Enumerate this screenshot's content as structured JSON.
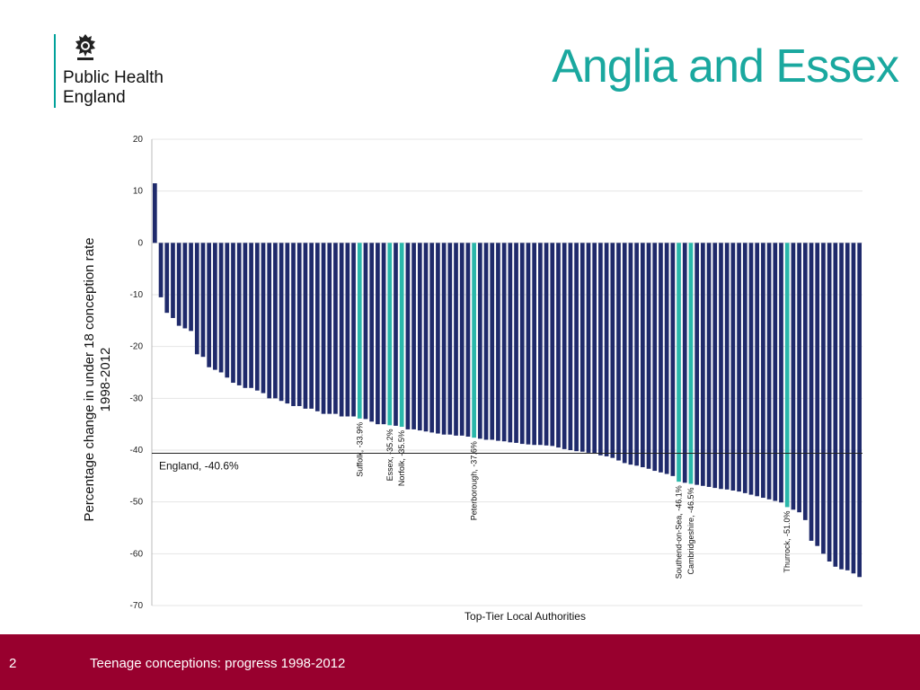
{
  "logo": {
    "line1": "Public Health",
    "line2": "England"
  },
  "slide": {
    "title": "Anglia and Essex"
  },
  "footer": {
    "page_number": "2",
    "text": "Teenage conceptions: progress 1998-2012"
  },
  "colors": {
    "bar": "#1f2a6b",
    "highlight": "#2ab7aa",
    "title": "#1aa89f",
    "footer": "#98002e"
  },
  "chart_data": {
    "type": "bar",
    "title": "",
    "xlabel": "Top-Tier Local Authorities",
    "ylabel": "Percentage change in under 18 conception rate 1998-2012",
    "ylim": [
      -70,
      20
    ],
    "yticks": [
      20,
      10,
      0,
      -10,
      -20,
      -30,
      -40,
      -50,
      -60,
      -70
    ],
    "grid": true,
    "reference_line": {
      "value": -40.6,
      "label": "England, -40.6%"
    },
    "values": [
      11.5,
      -10.5,
      -13.5,
      -14.5,
      -16.0,
      -16.5,
      -17.0,
      -21.5,
      -22.0,
      -24.0,
      -24.5,
      -25.0,
      -26.0,
      -27.0,
      -27.5,
      -28.0,
      -28.0,
      -28.5,
      -29.0,
      -30.0,
      -30.0,
      -30.5,
      -31.0,
      -31.5,
      -31.5,
      -32.0,
      -32.0,
      -32.5,
      -33.0,
      -33.0,
      -33.0,
      -33.5,
      -33.5,
      -33.5,
      -33.9,
      -34.0,
      -34.5,
      -35.0,
      -35.0,
      -35.2,
      -35.3,
      -35.5,
      -36.0,
      -36.0,
      -36.2,
      -36.4,
      -36.6,
      -36.8,
      -37.0,
      -37.0,
      -37.2,
      -37.2,
      -37.4,
      -37.6,
      -37.8,
      -38.0,
      -38.0,
      -38.2,
      -38.3,
      -38.5,
      -38.6,
      -38.8,
      -38.9,
      -39.0,
      -39.0,
      -39.1,
      -39.2,
      -39.5,
      -39.8,
      -40.0,
      -40.2,
      -40.3,
      -40.5,
      -40.7,
      -41.0,
      -41.2,
      -41.5,
      -42.0,
      -42.5,
      -42.8,
      -43.0,
      -43.3,
      -43.6,
      -44.0,
      -44.3,
      -44.6,
      -45.0,
      -46.1,
      -46.3,
      -46.5,
      -46.7,
      -46.9,
      -47.1,
      -47.3,
      -47.5,
      -47.6,
      -47.8,
      -48.0,
      -48.3,
      -48.6,
      -48.9,
      -49.2,
      -49.5,
      -49.8,
      -50.1,
      -51.0,
      -51.5,
      -52.0,
      -53.5,
      -57.5,
      -58.5,
      -60.0,
      -61.5,
      -62.5,
      -63.0,
      -63.2,
      -63.8,
      -64.5
    ],
    "highlights": [
      {
        "index": 34,
        "label": "Suffolk, -33.9%"
      },
      {
        "index": 39,
        "label": "Essex, -35.2%"
      },
      {
        "index": 41,
        "label": "Norfolk, -35.5%"
      },
      {
        "index": 53,
        "label": "Peterborough, -37.6%"
      },
      {
        "index": 87,
        "label": "Southend-on-Sea, -46.1%"
      },
      {
        "index": 89,
        "label": "Cambridgeshire, -46.5%"
      },
      {
        "index": 105,
        "label": "Thurrock, -51.0%"
      }
    ]
  }
}
